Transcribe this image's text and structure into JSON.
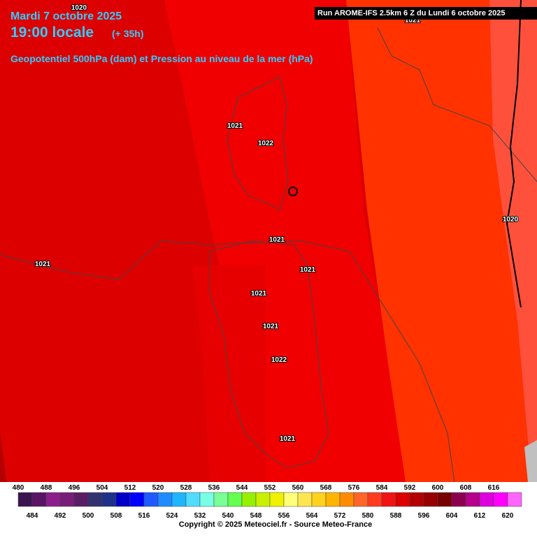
{
  "header": {
    "date": "Mardi 7 octobre 2025",
    "time": "19:00 locale",
    "lead": "(+ 35h)",
    "subtitle": "Geopotentiel 500hPa (dam) et Pression au niveau de la mer (hPa)",
    "run": "Run AROME-IFS 2.5km 6 Z du Lundi 6 octobre 2025"
  },
  "pressure_labels": [
    "1020",
    "1021",
    "1021",
    "1022",
    "1020",
    "1021",
    "1021",
    "1021",
    "1021",
    "1021",
    "1022",
    "1021"
  ],
  "legend": {
    "values": [
      480,
      484,
      488,
      492,
      496,
      500,
      504,
      508,
      512,
      516,
      520,
      524,
      528,
      532,
      536,
      540,
      544,
      548,
      552,
      556,
      560,
      564,
      568,
      572,
      576,
      580,
      584,
      588,
      592,
      596,
      600,
      604,
      608,
      612,
      616,
      620
    ],
    "colors": [
      "#3c1450",
      "#5a1464",
      "#8c1e8c",
      "#781e78",
      "#5a1e64",
      "#32326e",
      "#1e328c",
      "#0000c8",
      "#0000ff",
      "#1e5aff",
      "#1e8cff",
      "#1eb4ff",
      "#50dcff",
      "#78ffe6",
      "#78ff96",
      "#64ff50",
      "#96f000",
      "#c8f000",
      "#f0f000",
      "#ffff78",
      "#ffe650",
      "#ffd21e",
      "#ffb400",
      "#ff8c00",
      "#ff6428",
      "#ff3c1e",
      "#f01414",
      "#dc0000",
      "#b40000",
      "#960000",
      "#780000",
      "#8c0050",
      "#b4008c",
      "#dc00dc",
      "#ff00ff",
      "#ff64ff"
    ]
  },
  "footer": "Copyright © 2025 Meteociel.fr - Source Meteo-France"
}
